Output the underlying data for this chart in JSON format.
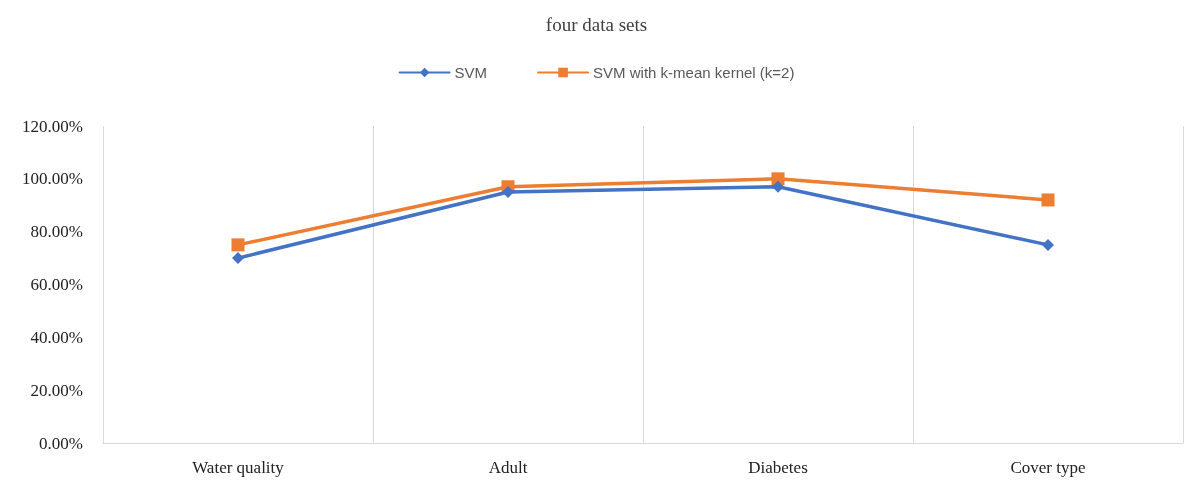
{
  "chart_data": {
    "type": "line",
    "title": "four data sets",
    "categories": [
      "Water quality",
      "Adult",
      "Diabetes",
      "Cover type"
    ],
    "series": [
      {
        "name": "SVM",
        "color": "#4472c4",
        "marker": "diamond",
        "values": [
          70,
          95,
          97,
          75
        ]
      },
      {
        "name": "SVM with k-mean kernel (k=2)",
        "color": "#ed7d31",
        "marker": "square",
        "values": [
          75,
          97,
          100,
          92
        ]
      }
    ],
    "ylim": [
      0,
      120
    ],
    "yticks": [
      {
        "value": 0,
        "label": "0.00%"
      },
      {
        "value": 20,
        "label": "20.00%"
      },
      {
        "value": 40,
        "label": "40.00%"
      },
      {
        "value": 60,
        "label": "60.00%"
      },
      {
        "value": 80,
        "label": "80.00%"
      },
      {
        "value": 100,
        "label": "100.00%"
      },
      {
        "value": 120,
        "label": "120.00%"
      }
    ],
    "grid": "x",
    "legend": "top",
    "line_style": "solid"
  }
}
